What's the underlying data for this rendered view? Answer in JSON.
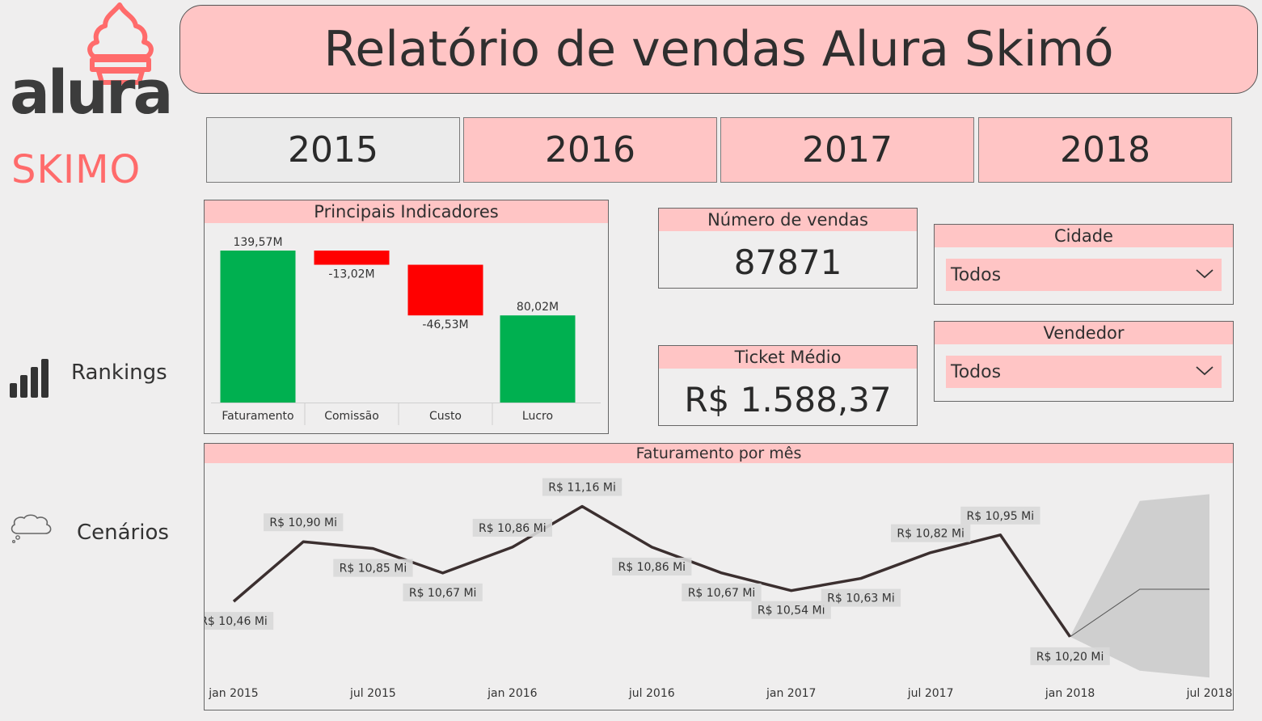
{
  "logo": {
    "wordmark": "alura",
    "subbrand": "SKIMO"
  },
  "title": "Relatório de vendas Alura Skimó",
  "years": [
    {
      "label": "2015",
      "selected": false
    },
    {
      "label": "2016",
      "selected": true
    },
    {
      "label": "2017",
      "selected": true
    },
    {
      "label": "2018",
      "selected": true
    }
  ],
  "nav": {
    "rankings": "Rankings",
    "cenarios": "Cenários"
  },
  "indicators": {
    "title": "Principais Indicadores",
    "categories": [
      "Faturamento",
      "Comissão",
      "Custo",
      "Lucro"
    ],
    "labels": [
      "139,57M",
      "-13,02M",
      "-46,53M",
      "80,02M"
    ]
  },
  "kpis": {
    "sales_count": {
      "title": "Número de vendas",
      "value": "87871"
    },
    "ticket": {
      "title": "Ticket Médio",
      "value": "R$ 1.588,37"
    }
  },
  "filters": {
    "city": {
      "title": "Cidade",
      "value": "Todos"
    },
    "seller": {
      "title": "Vendedor",
      "value": "Todos"
    }
  },
  "monthly": {
    "title": "Faturamento por mês",
    "x_ticks": [
      "jan 2015",
      "jul 2015",
      "jan 2016",
      "jul 2016",
      "jan 2017",
      "jul 2017",
      "jan 2018",
      "jul 2018"
    ]
  },
  "colors": {
    "accent": "#ffc5c5",
    "positive": "#00b050",
    "negative": "#ff0000",
    "line": "#3b2f2f",
    "forecast": "#cfcfcf"
  },
  "chart_data": [
    {
      "type": "bar",
      "subtype": "waterfall",
      "title": "Principais Indicadores",
      "categories": [
        "Faturamento",
        "Comissão",
        "Custo",
        "Lucro"
      ],
      "values": [
        139.57,
        -13.02,
        -46.53,
        80.02
      ],
      "data_labels": [
        "139,57M",
        "-13,02M",
        "-46,53M",
        "80,02M"
      ],
      "ylim": [
        0,
        139.57
      ]
    },
    {
      "type": "line",
      "title": "Faturamento por mês",
      "x_ticks": [
        "jan 2015",
        "jul 2015",
        "jan 2016",
        "jul 2016",
        "jan 2017",
        "jul 2017",
        "jan 2018",
        "jul 2018"
      ],
      "x": [
        "2015-01",
        "2015-04",
        "2015-07",
        "2015-10",
        "2016-01",
        "2016-04",
        "2016-07",
        "2016-10",
        "2017-01",
        "2017-04",
        "2017-07",
        "2017-10",
        "2018-01"
      ],
      "values": [
        10.46,
        10.9,
        10.85,
        10.67,
        10.86,
        11.16,
        10.86,
        10.67,
        10.54,
        10.63,
        10.82,
        10.95,
        10.2
      ],
      "data_labels": [
        "R$ 10,46 Mi",
        "R$ 10,90 Mi",
        "R$ 10,85 Mi",
        "R$ 10,67 Mi",
        "R$ 10,86 Mi",
        "R$ 11,16 Mi",
        "R$ 10,86 Mi",
        "R$ 10,67 Mi",
        "R$ 10,54 Mi",
        "R$ 10,63 Mi",
        "R$ 10,82 Mi",
        "R$ 10,95 Mi",
        "R$ 10,20 Mi"
      ],
      "forecast": {
        "x": [
          "2018-01",
          "2018-04",
          "2018-07"
        ],
        "values": [
          10.2,
          10.55,
          10.55
        ],
        "upper": [
          10.2,
          11.2,
          11.25
        ],
        "lower": [
          10.2,
          9.95,
          9.9
        ]
      }
    }
  ]
}
